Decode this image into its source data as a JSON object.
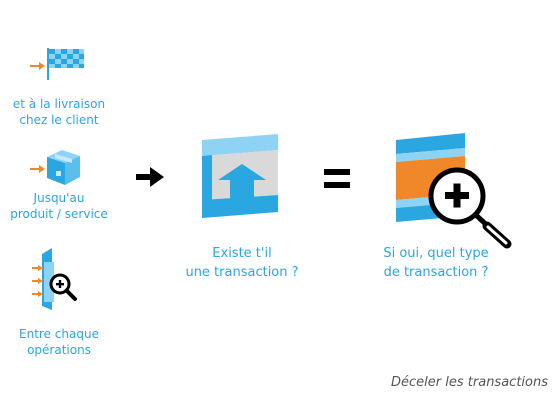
{
  "checkpoints": [
    {
      "id": "delivery",
      "icon": "checkered-flag-icon",
      "label_lines": [
        "et à la livraison",
        "chez le client"
      ]
    },
    {
      "id": "product",
      "icon": "package-box-icon",
      "label_lines": [
        "Jusqu'au",
        "produit / service"
      ]
    },
    {
      "id": "operations",
      "icon": "zoom-panel-icon",
      "label_lines": [
        "Entre chaque",
        "opérations"
      ]
    }
  ],
  "steps": [
    {
      "id": "exists",
      "icon": "upload-transaction-icon",
      "label_lines": [
        "Existe t'il",
        "une transaction ?"
      ]
    },
    {
      "id": "type",
      "icon": "inspect-transaction-icon",
      "label_lines": [
        "Si oui, quel type",
        "de transaction ?"
      ]
    }
  ],
  "caption": "Déceler les transactions",
  "colors": {
    "blue": "#2aa7e0",
    "light_blue": "#8fd3f4",
    "orange": "#f0882a",
    "gray": "#d9d9d9",
    "black": "#000000"
  }
}
